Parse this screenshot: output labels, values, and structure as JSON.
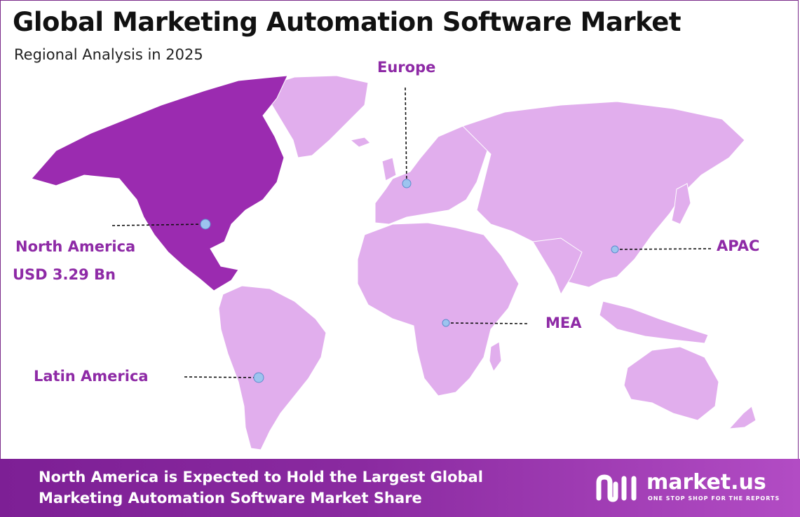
{
  "title": "Global Marketing Automation Software Market",
  "subtitle": "Regional Analysis in 2025",
  "colors": {
    "highlight_region": "#9b2bb0",
    "other_regions": "#e1aeed",
    "label": "#8e2aa6",
    "marker": "#9dc4ef",
    "footer_start": "#7d1f95",
    "footer_end": "#b24cc4"
  },
  "regions": {
    "north_america": {
      "name": "North America",
      "value": "USD 3.29 Bn",
      "highlighted": true
    },
    "europe": {
      "name": "Europe"
    },
    "apac": {
      "name": "APAC"
    },
    "mea": {
      "name": "MEA"
    },
    "latin_america": {
      "name": "Latin America"
    }
  },
  "footer": {
    "line1": "North America is Expected to Hold the Largest Global",
    "line2": "Marketing Automation Software Market Share"
  },
  "logo": {
    "icon": "market-us-logo-icon",
    "name": "market.us",
    "tagline": "ONE STOP SHOP FOR THE REPORTS"
  }
}
